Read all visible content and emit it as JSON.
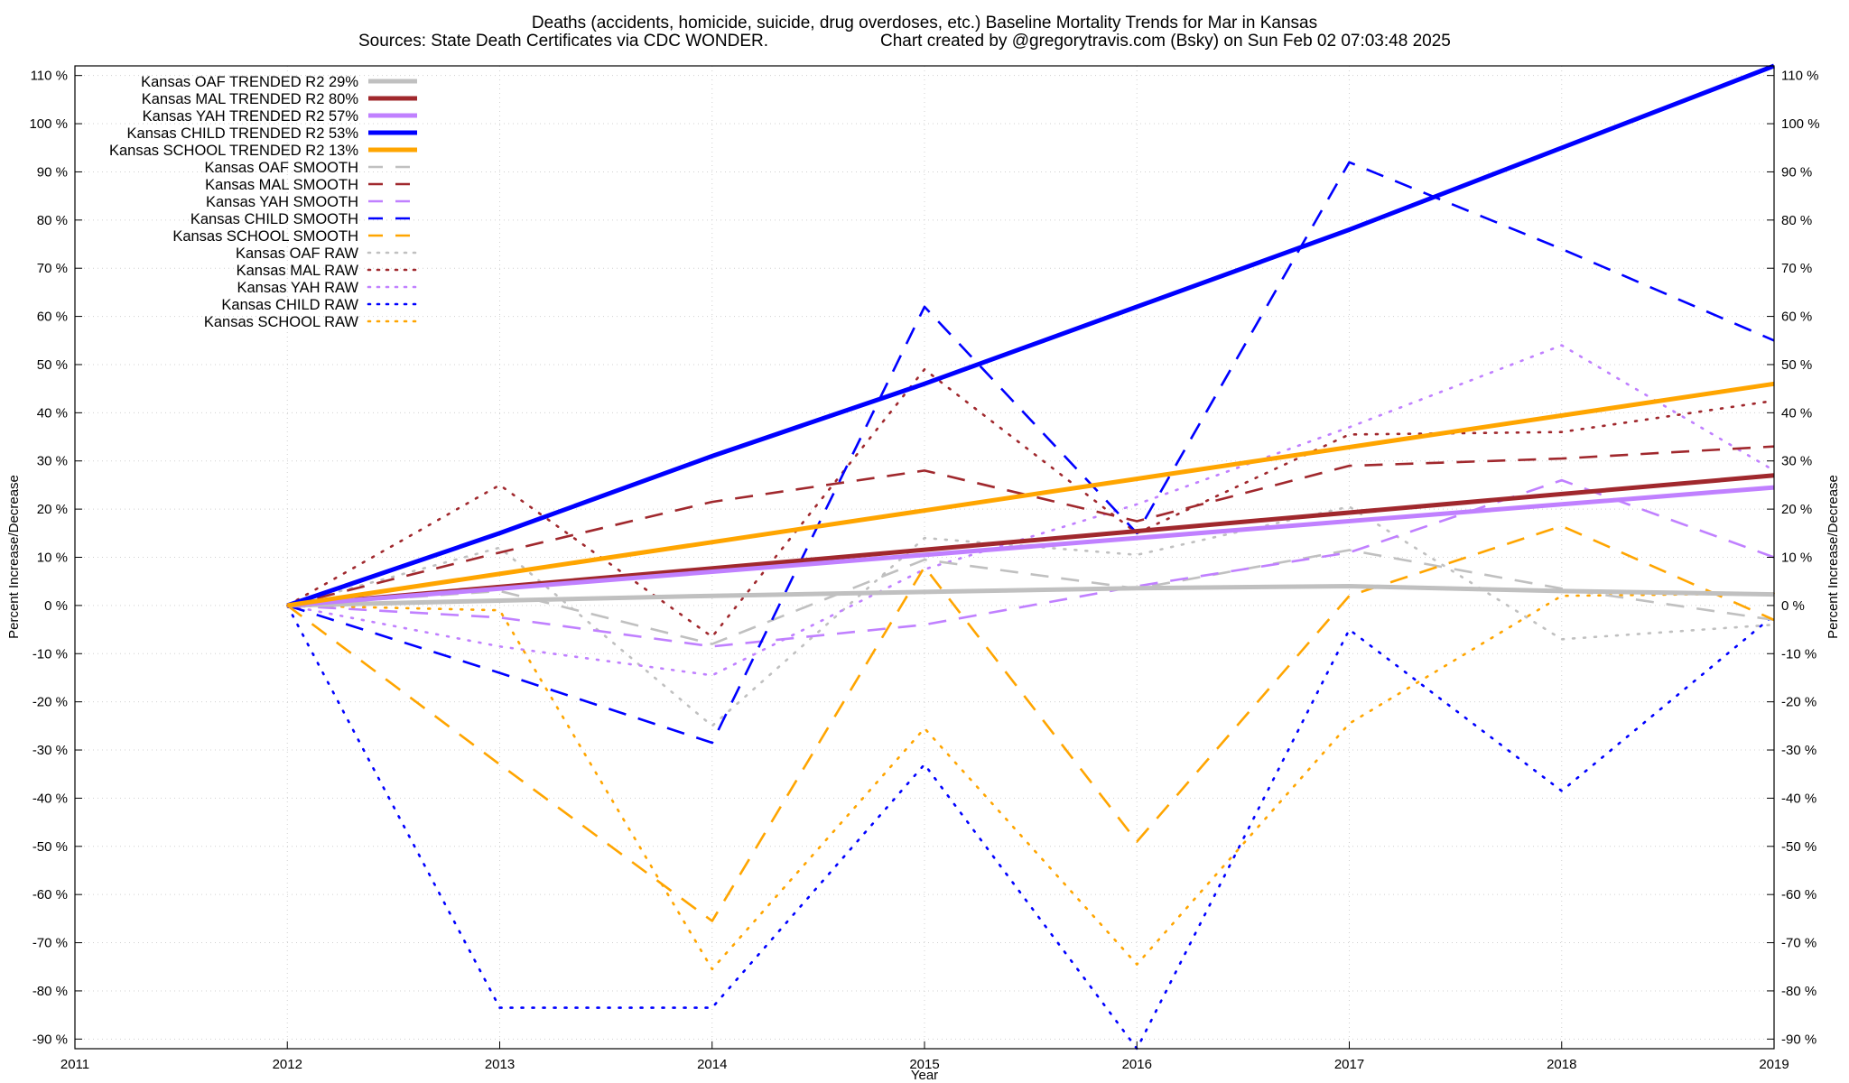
{
  "chart_data": {
    "type": "line",
    "title": "Deaths (accidents, homicide, suicide, drug overdoses, etc.)  Baseline Mortality Trends for Mar in Kansas",
    "subtitle_left": "Sources: State Death Certificates via CDC WONDER.",
    "subtitle_right": "Chart created by @gregorytravis.com (Bsky) on Sun Feb 02 07:03:48 2025",
    "xlabel": "Year",
    "ylabel": "Percent Increase/Decrease",
    "xlim": [
      2011,
      2019
    ],
    "ylim": [
      -92,
      112
    ],
    "x_ticks": [
      2011,
      2012,
      2013,
      2014,
      2015,
      2016,
      2017,
      2018,
      2019
    ],
    "y_ticks": [
      -90,
      -80,
      -70,
      -60,
      -50,
      -40,
      -30,
      -20,
      -10,
      0,
      10,
      20,
      30,
      40,
      50,
      60,
      70,
      80,
      90,
      100,
      110
    ],
    "y_tick_suffix": " %",
    "grid": true,
    "legend_position": "top-left",
    "series": [
      {
        "name": "Kansas OAF TRENDED R2  29%",
        "style": "solid",
        "color": "#c0c0c0",
        "x": [
          2012,
          2013,
          2014,
          2015,
          2016,
          2017,
          2018,
          2019
        ],
        "y": [
          0,
          1,
          2,
          2.8,
          3.6,
          4,
          3,
          2.3
        ]
      },
      {
        "name": "Kansas MAL TRENDED R2  80%",
        "style": "solid",
        "color": "#a0282d",
        "x": [
          2012,
          2019
        ],
        "y": [
          0,
          27
        ]
      },
      {
        "name": "Kansas YAH TRENDED R2  57%",
        "style": "solid",
        "color": "#c080ff",
        "x": [
          2012,
          2019
        ],
        "y": [
          0,
          24.5
        ]
      },
      {
        "name": "Kansas CHILD TRENDED R2  53%",
        "style": "solid",
        "color": "#0000ff",
        "x": [
          2012,
          2013,
          2014,
          2015,
          2016,
          2017,
          2018,
          2019
        ],
        "y": [
          0,
          15,
          31,
          46,
          62,
          78,
          95,
          112
        ]
      },
      {
        "name": "Kansas SCHOOL TRENDED R2  13%",
        "style": "solid",
        "color": "#ffa500",
        "x": [
          2012,
          2019
        ],
        "y": [
          0,
          46
        ]
      },
      {
        "name": "Kansas OAF SMOOTH",
        "style": "dashed",
        "color": "#c0c0c0",
        "x": [
          2012,
          2013,
          2014,
          2015,
          2016,
          2017,
          2018,
          2019
        ],
        "y": [
          0,
          3,
          -8,
          9.5,
          3.5,
          11.5,
          3.5,
          -3
        ]
      },
      {
        "name": "Kansas MAL SMOOTH",
        "style": "dashed",
        "color": "#a0282d",
        "x": [
          2012,
          2013,
          2014,
          2015,
          2016,
          2017,
          2018,
          2019
        ],
        "y": [
          0,
          11,
          21.5,
          28,
          17.5,
          29,
          30.5,
          33
        ]
      },
      {
        "name": "Kansas YAH SMOOTH",
        "style": "dashed",
        "color": "#c080ff",
        "x": [
          2012,
          2013,
          2014,
          2015,
          2016,
          2017,
          2018,
          2019
        ],
        "y": [
          0,
          -2.5,
          -8.5,
          -4,
          4,
          11,
          26,
          10
        ]
      },
      {
        "name": "Kansas CHILD SMOOTH",
        "style": "dashed",
        "color": "#0000ff",
        "x": [
          2012,
          2013,
          2014,
          2015,
          2016,
          2017,
          2018,
          2019
        ],
        "y": [
          0,
          -14,
          -28.5,
          62,
          15,
          92,
          74,
          55
        ]
      },
      {
        "name": "Kansas SCHOOL SMOOTH",
        "style": "dashed",
        "color": "#ffa500",
        "x": [
          2012,
          2013,
          2014,
          2015,
          2016,
          2017,
          2018,
          2019
        ],
        "y": [
          0,
          -33,
          -65.5,
          8,
          -49,
          2,
          16.5,
          -3
        ]
      },
      {
        "name": "Kansas OAF RAW",
        "style": "dotted",
        "color": "#c0c0c0",
        "x": [
          2012,
          2013,
          2014,
          2015,
          2016,
          2017,
          2018,
          2019
        ],
        "y": [
          0,
          12,
          -25,
          14,
          10.5,
          20.5,
          -7,
          -4
        ]
      },
      {
        "name": "Kansas MAL RAW",
        "style": "dotted",
        "color": "#a0282d",
        "x": [
          2012,
          2013,
          2014,
          2015,
          2016,
          2017,
          2018,
          2019
        ],
        "y": [
          0,
          25,
          -6.5,
          49,
          15,
          35.5,
          36,
          42.5
        ]
      },
      {
        "name": "Kansas YAH RAW",
        "style": "dotted",
        "color": "#c080ff",
        "x": [
          2012,
          2013,
          2014,
          2015,
          2016,
          2017,
          2018,
          2019
        ],
        "y": [
          0,
          -8.5,
          -14.5,
          7.5,
          21,
          37,
          54,
          28
        ]
      },
      {
        "name": "Kansas CHILD RAW",
        "style": "dotted",
        "color": "#0000ff",
        "x": [
          2012,
          2013,
          2014,
          2015,
          2016,
          2017,
          2018,
          2019
        ],
        "y": [
          0,
          -83.5,
          -83.5,
          -33,
          -92,
          -5,
          -38.5,
          -2
        ]
      },
      {
        "name": "Kansas SCHOOL RAW",
        "style": "dotted",
        "color": "#ffa500",
        "x": [
          2012,
          2013,
          2014,
          2015,
          2016,
          2017,
          2018,
          2019
        ],
        "y": [
          0,
          -1,
          -75.5,
          -25.5,
          -74.5,
          -24.5,
          2,
          2.5
        ]
      }
    ]
  }
}
